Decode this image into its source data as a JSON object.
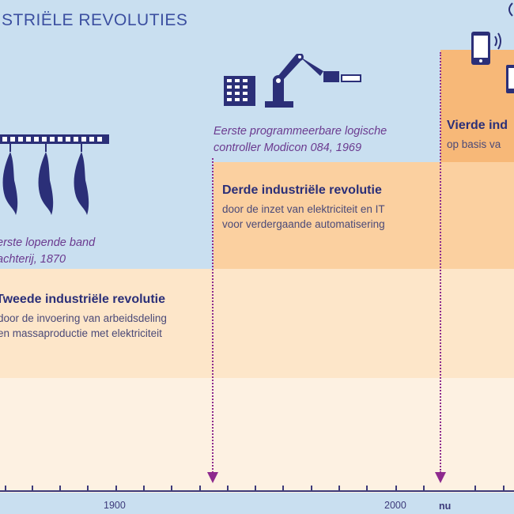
{
  "header": {
    "title": "STRIËLE REVOLUTIES"
  },
  "revolutions": [
    {
      "id": "tweede",
      "caption_lines": [
        "erste lopende band",
        "achterij, 1870"
      ],
      "title_bold": "Tweede",
      "title_rest": " industriële revolutie",
      "desc_lines": [
        "door de invoering van arbeidsdeling",
        "en massaproductie met elektriciteit"
      ]
    },
    {
      "id": "derde",
      "caption_lines": [
        "Eerste programmeerbare logische",
        "controller Modicon 084, 1969"
      ],
      "title_bold": "Derde",
      "title_rest": " industriële revolutie",
      "desc_lines": [
        "door de inzet van elektriciteit en IT",
        "voor verdergaande automatisering"
      ]
    },
    {
      "id": "vierde",
      "title_bold": "Vierde",
      "title_rest": " ind",
      "desc_lines": [
        "op basis va"
      ]
    }
  ],
  "timeline": {
    "years": [
      "1900",
      "2000"
    ],
    "now_label": "nu"
  },
  "colors": {
    "sky": "#c9dff0",
    "band_second": "#fde6c9",
    "band_third": "#fbd0a0",
    "band_fourth": "#f7b878",
    "band_base": "#fdf1e2",
    "arrow": "#8e2a8e",
    "title_text": "#2b2f78"
  },
  "icons": [
    "hanging-carcasses-icon",
    "robot-arm-icon",
    "smartphone-icon",
    "tablet-icon"
  ]
}
